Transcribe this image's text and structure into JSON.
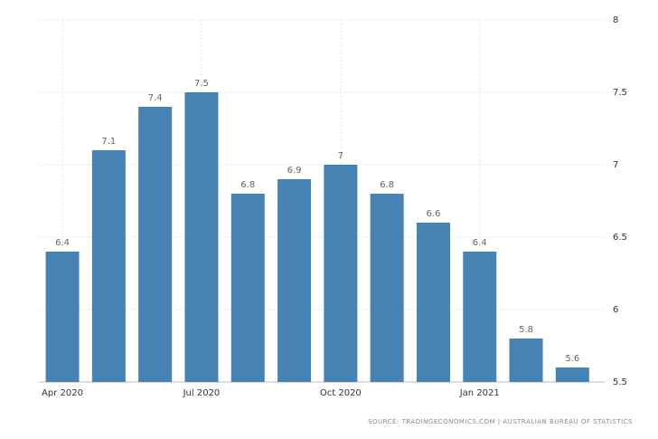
{
  "chart_data": {
    "type": "bar",
    "categories": [
      "Apr 2020",
      null,
      null,
      "Jul 2020",
      null,
      null,
      "Oct 2020",
      null,
      null,
      "Jan 2021",
      null,
      null
    ],
    "values": [
      6.4,
      7.1,
      7.4,
      7.5,
      6.8,
      6.9,
      7,
      6.8,
      6.6,
      6.4,
      5.8,
      5.6
    ],
    "color": "#4682b4",
    "ylim": [
      5.5,
      8
    ],
    "yticks": [
      5.5,
      6,
      6.5,
      7,
      7.5,
      8
    ],
    "grid": true,
    "source": "SOURCE: TRADINGECONOMICS.COM | AUSTRALIAN BUREAU OF STATISTICS"
  }
}
